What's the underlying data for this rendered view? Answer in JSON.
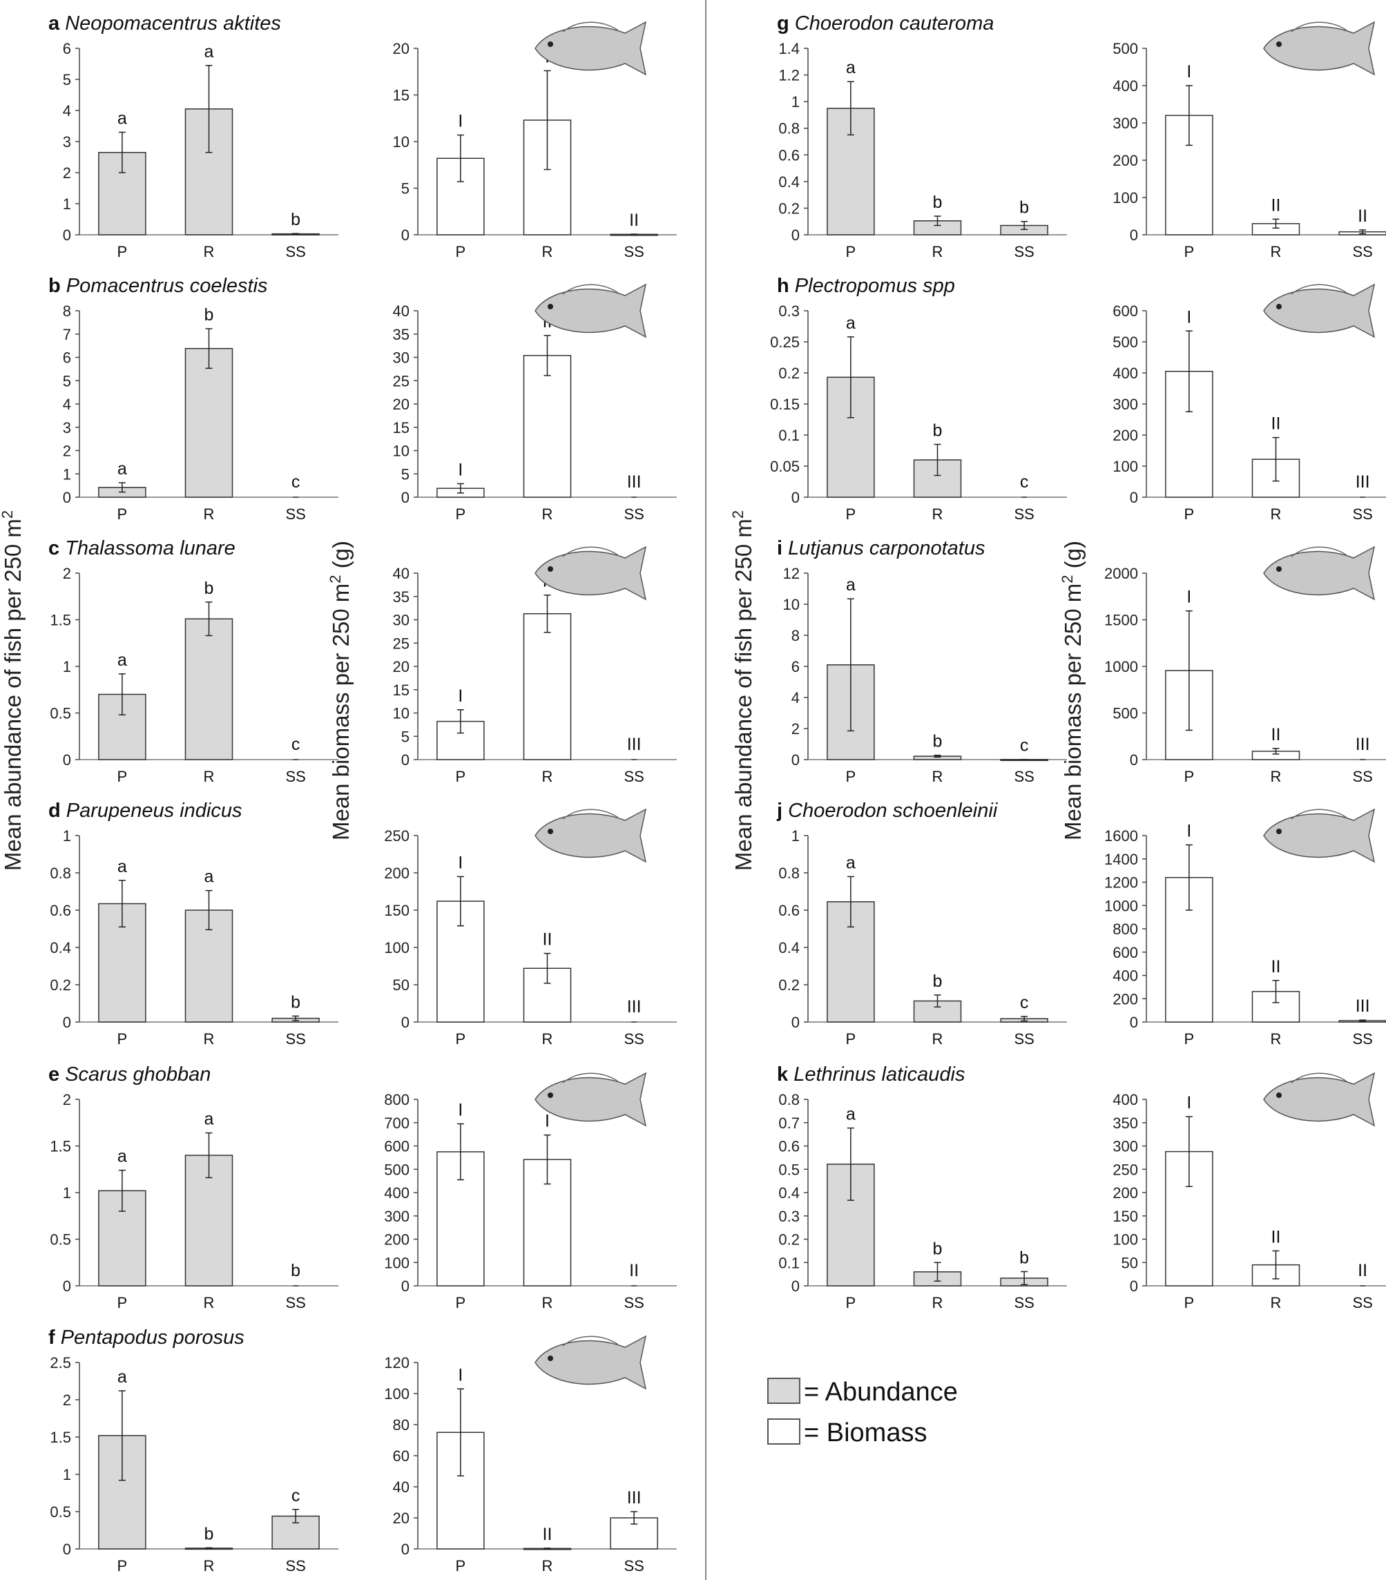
{
  "figure": {
    "y_axis_abundance": "Mean abundance of fish per 250 m",
    "y_axis_biomass": "Mean biomass per 250 m",
    "y_axis_sup": "2",
    "y_axis_unit": " (g)",
    "legend": [
      {
        "label": "= Abundance",
        "color": "#d9d9d9"
      },
      {
        "label": "= Biomass",
        "color": "#ffffff"
      }
    ],
    "colors": {
      "abundance_fill": "#d9d9d9",
      "biomass_fill": "#ffffff",
      "stroke": "#333333",
      "divider": "#888888"
    },
    "fish_icon": "fish-illustration-icon"
  },
  "chart_data": [
    {
      "id": "a",
      "letter": "a",
      "species": "Neopomacentrus aktites",
      "type": "bar",
      "categories": [
        "P",
        "R",
        "SS"
      ],
      "abundance": {
        "ylim": [
          0,
          6
        ],
        "ticks": [
          "0",
          "1",
          "2",
          "3",
          "4",
          "5",
          "6"
        ],
        "values": [
          2.65,
          4.05,
          0.03
        ],
        "err": [
          0.65,
          1.4,
          0.01
        ],
        "sig": [
          "a",
          "a",
          "b"
        ]
      },
      "biomass": {
        "ylim": [
          0,
          20
        ],
        "ticks": [
          "0",
          "5",
          "10",
          "15",
          "20"
        ],
        "values": [
          8.2,
          12.3,
          0.05
        ],
        "err": [
          2.5,
          5.3,
          0.02
        ],
        "sig": [
          "I",
          "I",
          "II"
        ]
      }
    },
    {
      "id": "b",
      "letter": "b",
      "species": "Pomacentrus coelestis",
      "type": "bar",
      "categories": [
        "P",
        "R",
        "SS"
      ],
      "abundance": {
        "ylim": [
          0,
          8
        ],
        "ticks": [
          "0",
          "1",
          "2",
          "3",
          "4",
          "5",
          "6",
          "7",
          "8"
        ],
        "values": [
          0.42,
          6.38,
          0
        ],
        "err": [
          0.2,
          0.85,
          0
        ],
        "sig": [
          "a",
          "b",
          "c"
        ]
      },
      "biomass": {
        "ylim": [
          0,
          40
        ],
        "ticks": [
          "0",
          "5",
          "10",
          "15",
          "20",
          "25",
          "30",
          "35",
          "40"
        ],
        "values": [
          1.9,
          30.4,
          0
        ],
        "err": [
          1.0,
          4.3,
          0
        ],
        "sig": [
          "I",
          "II",
          "III"
        ]
      }
    },
    {
      "id": "c",
      "letter": "c",
      "species": "Thalassoma lunare",
      "type": "bar",
      "categories": [
        "P",
        "R",
        "SS"
      ],
      "abundance": {
        "ylim": [
          0,
          2
        ],
        "ticks": [
          "0",
          "0.5",
          "1",
          "1.5",
          "2"
        ],
        "values": [
          0.7,
          1.51,
          0
        ],
        "err": [
          0.22,
          0.18,
          0
        ],
        "sig": [
          "a",
          "b",
          "c"
        ]
      },
      "biomass": {
        "ylim": [
          0,
          40
        ],
        "ticks": [
          "0",
          "5",
          "10",
          "15",
          "20",
          "25",
          "30",
          "35",
          "40"
        ],
        "values": [
          8.2,
          31.3,
          0
        ],
        "err": [
          2.5,
          4.0,
          0
        ],
        "sig": [
          "I",
          "II",
          "III"
        ]
      }
    },
    {
      "id": "d",
      "letter": "d",
      "species": "Parupeneus indicus",
      "type": "bar",
      "categories": [
        "P",
        "R",
        "SS"
      ],
      "abundance": {
        "ylim": [
          0,
          1
        ],
        "ticks": [
          "0",
          "0.2",
          "0.4",
          "0.6",
          "0.8",
          "1"
        ],
        "values": [
          0.635,
          0.6,
          0.02
        ],
        "err": [
          0.125,
          0.105,
          0.012
        ],
        "sig": [
          "a",
          "a",
          "b"
        ]
      },
      "biomass": {
        "ylim": [
          0,
          250
        ],
        "ticks": [
          "0",
          "50",
          "100",
          "150",
          "200",
          "250"
        ],
        "values": [
          162,
          72,
          0
        ],
        "err": [
          33,
          20,
          0
        ],
        "sig": [
          "I",
          "II",
          "III"
        ]
      }
    },
    {
      "id": "e",
      "letter": "e",
      "species": "Scarus ghobban",
      "type": "bar",
      "categories": [
        "P",
        "R",
        "SS"
      ],
      "abundance": {
        "ylim": [
          0,
          2
        ],
        "ticks": [
          "0",
          "0.5",
          "1",
          "1.5",
          "2"
        ],
        "values": [
          1.02,
          1.4,
          0
        ],
        "err": [
          0.22,
          0.24,
          0
        ],
        "sig": [
          "a",
          "a",
          "b"
        ]
      },
      "biomass": {
        "ylim": [
          0,
          800
        ],
        "ticks": [
          "0",
          "100",
          "200",
          "300",
          "400",
          "500",
          "600",
          "700",
          "800"
        ],
        "values": [
          575,
          542,
          0
        ],
        "err": [
          120,
          105,
          0
        ],
        "sig": [
          "I",
          "I",
          "II"
        ]
      }
    },
    {
      "id": "f",
      "letter": "f",
      "species": "Pentapodus porosus",
      "type": "bar",
      "categories": [
        "P",
        "R",
        "SS"
      ],
      "abundance": {
        "ylim": [
          0,
          2.5
        ],
        "ticks": [
          "0",
          "0.5",
          "1",
          "1.5",
          "2",
          "2.5"
        ],
        "values": [
          1.52,
          0.01,
          0.44
        ],
        "err": [
          0.6,
          0.005,
          0.09
        ],
        "sig": [
          "a",
          "b",
          "c"
        ]
      },
      "biomass": {
        "ylim": [
          0,
          120
        ],
        "ticks": [
          "0",
          "20",
          "40",
          "60",
          "80",
          "100",
          "120"
        ],
        "values": [
          75,
          0.3,
          20
        ],
        "err": [
          28,
          0.2,
          4
        ],
        "sig": [
          "I",
          "II",
          "III"
        ]
      }
    },
    {
      "id": "g",
      "letter": "g",
      "species": "Choerodon cauteroma",
      "type": "bar",
      "categories": [
        "P",
        "R",
        "SS"
      ],
      "abundance": {
        "ylim": [
          0,
          1.4
        ],
        "ticks": [
          "0",
          "0.2",
          "0.4",
          "0.6",
          "0.8",
          "1",
          "1.2",
          "1.4"
        ],
        "values": [
          0.95,
          0.105,
          0.07
        ],
        "err": [
          0.2,
          0.035,
          0.03
        ],
        "sig": [
          "a",
          "b",
          "b"
        ]
      },
      "biomass": {
        "ylim": [
          0,
          500
        ],
        "ticks": [
          "0",
          "100",
          "200",
          "300",
          "400",
          "500"
        ],
        "values": [
          320,
          30,
          8
        ],
        "err": [
          80,
          12,
          5
        ],
        "sig": [
          "I",
          "II",
          "II"
        ]
      }
    },
    {
      "id": "h",
      "letter": "h",
      "species": "Plectropomus spp",
      "type": "bar",
      "categories": [
        "P",
        "R",
        "SS"
      ],
      "abundance": {
        "ylim": [
          0,
          0.3
        ],
        "ticks": [
          "0",
          "0.05",
          "0.1",
          "0.15",
          "0.2",
          "0.25",
          "0.3"
        ],
        "values": [
          0.193,
          0.06,
          0
        ],
        "err": [
          0.065,
          0.025,
          0
        ],
        "sig": [
          "a",
          "b",
          "c"
        ]
      },
      "biomass": {
        "ylim": [
          0,
          600
        ],
        "ticks": [
          "0",
          "100",
          "200",
          "300",
          "400",
          "500",
          "600"
        ],
        "values": [
          405,
          122,
          0
        ],
        "err": [
          130,
          70,
          0
        ],
        "sig": [
          "I",
          "II",
          "III"
        ]
      }
    },
    {
      "id": "i",
      "letter": "i",
      "species": "Lutjanus carponotatus",
      "type": "bar",
      "categories": [
        "P",
        "R",
        "SS"
      ],
      "abundance": {
        "ylim": [
          0,
          12
        ],
        "ticks": [
          "0",
          "2",
          "4",
          "6",
          "8",
          "10",
          "12"
        ],
        "values": [
          6.1,
          0.22,
          0.01
        ],
        "err": [
          4.25,
          0.06,
          0.005
        ],
        "sig": [
          "a",
          "b",
          "c"
        ]
      },
      "biomass": {
        "ylim": [
          0,
          2000
        ],
        "ticks": [
          "0",
          "500",
          "1000",
          "1500",
          "2000"
        ],
        "values": [
          955,
          90,
          0
        ],
        "err": [
          640,
          30,
          0
        ],
        "sig": [
          "I",
          "II",
          "III"
        ]
      }
    },
    {
      "id": "j",
      "letter": "j",
      "species": "Choerodon schoenleinii",
      "type": "bar",
      "categories": [
        "P",
        "R",
        "SS"
      ],
      "abundance": {
        "ylim": [
          0,
          1
        ],
        "ticks": [
          "0",
          "0.2",
          "0.4",
          "0.6",
          "0.8",
          "1"
        ],
        "values": [
          0.645,
          0.113,
          0.018
        ],
        "err": [
          0.135,
          0.032,
          0.012
        ],
        "sig": [
          "a",
          "b",
          "c"
        ]
      },
      "biomass": {
        "ylim": [
          0,
          1600
        ],
        "ticks": [
          "0",
          "200",
          "400",
          "600",
          "800",
          "1000",
          "1200",
          "1400",
          "1600"
        ],
        "values": [
          1240,
          262,
          12
        ],
        "err": [
          280,
          95,
          5
        ],
        "sig": [
          "I",
          "II",
          "III"
        ]
      }
    },
    {
      "id": "k",
      "letter": "k",
      "species": "Lethrinus laticaudis",
      "type": "bar",
      "categories": [
        "P",
        "R",
        "SS"
      ],
      "abundance": {
        "ylim": [
          0,
          0.8
        ],
        "ticks": [
          "0",
          "0.1",
          "0.2",
          "0.3",
          "0.4",
          "0.5",
          "0.6",
          "0.7",
          "0.8"
        ],
        "values": [
          0.522,
          0.06,
          0.033
        ],
        "err": [
          0.155,
          0.04,
          0.028
        ],
        "sig": [
          "a",
          "b",
          "b"
        ]
      },
      "biomass": {
        "ylim": [
          0,
          400
        ],
        "ticks": [
          "0",
          "50",
          "100",
          "150",
          "200",
          "250",
          "300",
          "350",
          "400"
        ],
        "values": [
          288,
          45,
          0
        ],
        "err": [
          75,
          30,
          0
        ],
        "sig": [
          "I",
          "II",
          "II"
        ]
      }
    }
  ]
}
